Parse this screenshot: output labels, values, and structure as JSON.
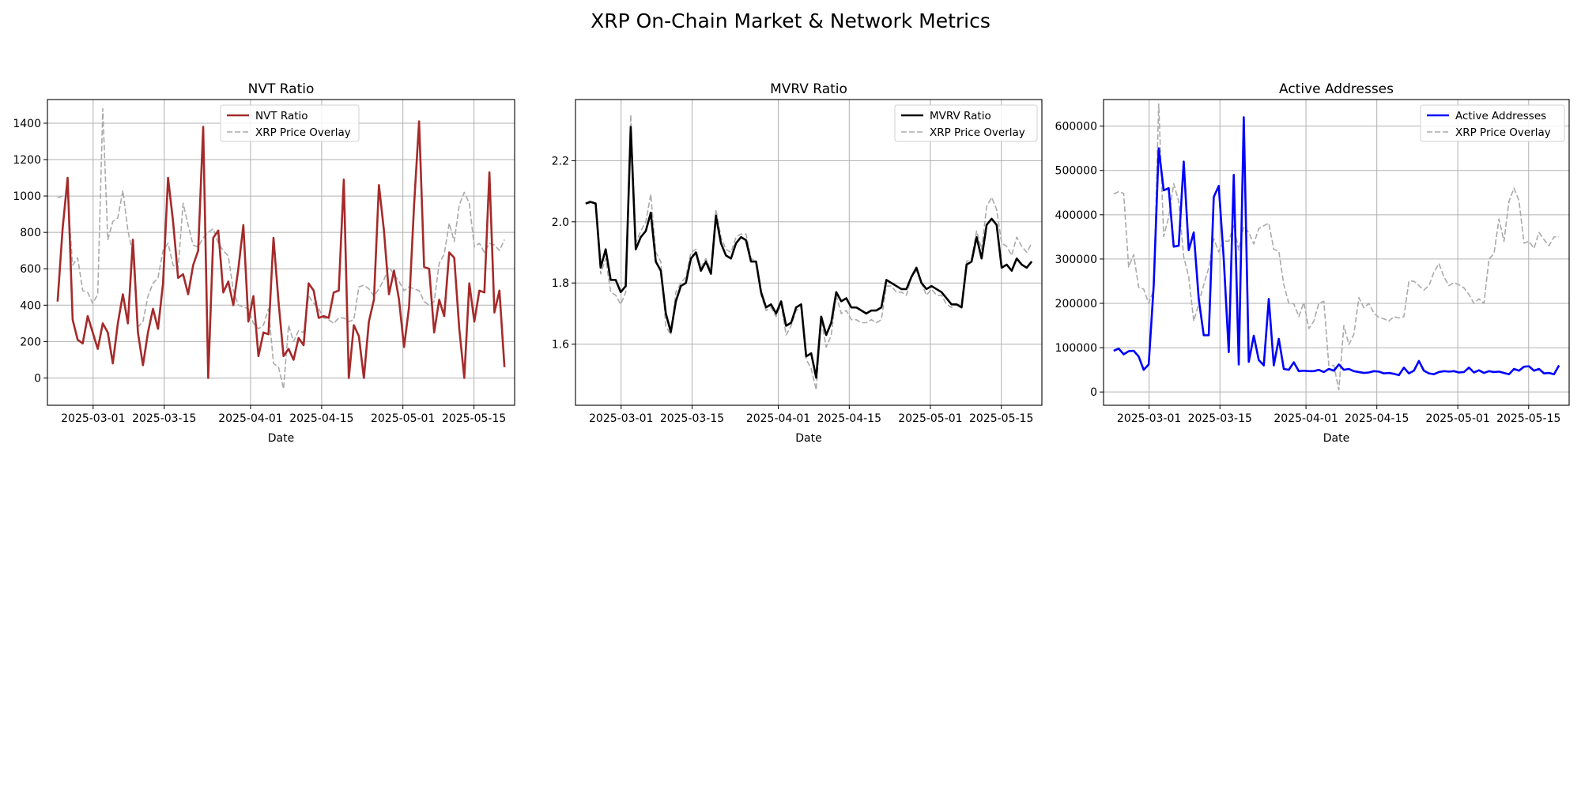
{
  "suptitle": "XRP On-Chain Market & Network Metrics",
  "chart_data": [
    {
      "type": "line",
      "title": "NVT Ratio",
      "xlabel": "Date",
      "ylabel": "",
      "x_start": "2025-02-22",
      "x_end": "2025-05-21",
      "xlim": [
        "2025-02-20",
        "2025-05-23"
      ],
      "xticks": [
        "2025-03-01",
        "2025-03-15",
        "2025-04-01",
        "2025-04-15",
        "2025-05-01",
        "2025-05-15"
      ],
      "ylim": [
        -150,
        1530
      ],
      "yticks": [
        0,
        200,
        400,
        600,
        800,
        1000,
        1200,
        1400
      ],
      "grid": true,
      "legend": "upper center",
      "series": [
        {
          "name": "NVT Ratio",
          "color": "#a52a2a",
          "style": "solid",
          "values": [
            420,
            820,
            1100,
            320,
            210,
            190,
            340,
            250,
            160,
            300,
            250,
            80,
            300,
            460,
            300,
            760,
            250,
            70,
            250,
            380,
            270,
            520,
            1100,
            860,
            550,
            570,
            460,
            620,
            700,
            1380,
            0,
            770,
            810,
            470,
            530,
            400,
            600,
            840,
            310,
            450,
            120,
            250,
            240,
            770,
            420,
            120,
            160,
            100,
            220,
            180,
            520,
            480,
            330,
            340,
            330,
            470,
            480,
            1090,
            0,
            290,
            230,
            0,
            310,
            430,
            1060,
            810,
            460,
            590,
            430,
            170,
            390,
            950,
            1410,
            610,
            600,
            250,
            430,
            340,
            690,
            660,
            270,
            0,
            520,
            310,
            480,
            470,
            1130,
            360,
            480,
            60
          ]
        },
        {
          "name": "XRP Price Overlay",
          "color": "#aaaaaa",
          "style": "dashed",
          "values": [
            990,
            1000,
            1000,
            620,
            660,
            480,
            470,
            410,
            460,
            1480,
            760,
            860,
            880,
            1030,
            810,
            680,
            280,
            310,
            450,
            520,
            550,
            700,
            740,
            620,
            600,
            960,
            840,
            730,
            720,
            770,
            800,
            820,
            740,
            700,
            670,
            480,
            400,
            390,
            380,
            300,
            270,
            290,
            380,
            80,
            60,
            -60,
            290,
            200,
            260,
            250,
            450,
            410,
            380,
            330,
            320,
            300,
            330,
            330,
            310,
            320,
            500,
            510,
            490,
            450,
            490,
            540,
            610,
            570,
            530,
            480,
            500,
            490,
            480,
            420,
            400,
            420,
            630,
            680,
            850,
            750,
            950,
            1020,
            960,
            720,
            740,
            690,
            740,
            730,
            700,
            760
          ]
        }
      ]
    },
    {
      "type": "line",
      "title": "MVRV Ratio",
      "xlabel": "Date",
      "ylabel": "",
      "x_start": "2025-02-22",
      "x_end": "2025-05-21",
      "xlim": [
        "2025-02-20",
        "2025-05-23"
      ],
      "xticks": [
        "2025-03-01",
        "2025-03-15",
        "2025-04-01",
        "2025-04-15",
        "2025-05-01",
        "2025-05-15"
      ],
      "ylim": [
        1.4,
        2.4
      ],
      "yticks": [
        1.6,
        1.8,
        2.0,
        2.2
      ],
      "grid": true,
      "legend": "upper right",
      "series": [
        {
          "name": "MVRV Ratio",
          "color": "#000000",
          "style": "solid",
          "values": [
            2.06,
            2.065,
            2.06,
            1.85,
            1.91,
            1.81,
            1.81,
            1.77,
            1.79,
            2.31,
            1.91,
            1.95,
            1.97,
            2.03,
            1.87,
            1.84,
            1.7,
            1.64,
            1.74,
            1.79,
            1.8,
            1.88,
            1.9,
            1.84,
            1.87,
            1.83,
            2.02,
            1.93,
            1.89,
            1.88,
            1.93,
            1.95,
            1.94,
            1.87,
            1.87,
            1.77,
            1.72,
            1.73,
            1.7,
            1.74,
            1.66,
            1.67,
            1.72,
            1.73,
            1.56,
            1.57,
            1.49,
            1.69,
            1.63,
            1.67,
            1.77,
            1.74,
            1.75,
            1.72,
            1.72,
            1.71,
            1.7,
            1.71,
            1.71,
            1.72,
            1.81,
            1.8,
            1.79,
            1.78,
            1.78,
            1.82,
            1.85,
            1.8,
            1.78,
            1.79,
            1.78,
            1.77,
            1.75,
            1.73,
            1.73,
            1.72,
            1.86,
            1.87,
            1.95,
            1.88,
            1.99,
            2.01,
            1.99,
            1.85,
            1.86,
            1.84,
            1.88,
            1.86,
            1.85,
            1.87
          ]
        },
        {
          "name": "XRP Price Overlay",
          "color": "#aaaaaa",
          "style": "dashed",
          "values": [
            2.06,
            2.07,
            2.06,
            1.83,
            1.88,
            1.77,
            1.76,
            1.73,
            1.77,
            2.35,
            1.93,
            1.97,
            2.0,
            2.09,
            1.9,
            1.87,
            1.66,
            1.63,
            1.77,
            1.8,
            1.82,
            1.9,
            1.91,
            1.85,
            1.88,
            1.84,
            2.04,
            1.95,
            1.91,
            1.9,
            1.95,
            1.96,
            1.96,
            1.88,
            1.87,
            1.76,
            1.71,
            1.72,
            1.69,
            1.73,
            1.63,
            1.66,
            1.71,
            1.72,
            1.55,
            1.52,
            1.45,
            1.68,
            1.59,
            1.63,
            1.76,
            1.7,
            1.71,
            1.68,
            1.68,
            1.67,
            1.67,
            1.68,
            1.67,
            1.68,
            1.79,
            1.79,
            1.77,
            1.77,
            1.76,
            1.82,
            1.84,
            1.8,
            1.76,
            1.78,
            1.76,
            1.76,
            1.73,
            1.72,
            1.73,
            1.73,
            1.87,
            1.88,
            1.97,
            1.91,
            2.05,
            2.08,
            2.04,
            1.93,
            1.92,
            1.89,
            1.95,
            1.92,
            1.9,
            1.93
          ]
        }
      ]
    },
    {
      "type": "line",
      "title": "Active Addresses",
      "xlabel": "Date",
      "ylabel": "",
      "x_start": "2025-02-22",
      "x_end": "2025-05-21",
      "xlim": [
        "2025-02-20",
        "2025-05-23"
      ],
      "xticks": [
        "2025-03-01",
        "2025-03-15",
        "2025-04-01",
        "2025-04-15",
        "2025-05-01",
        "2025-05-15"
      ],
      "ylim": [
        -30000,
        660000
      ],
      "yticks": [
        0,
        100000,
        200000,
        300000,
        400000,
        500000,
        600000
      ],
      "grid": true,
      "legend": "upper right",
      "series": [
        {
          "name": "Active Addresses",
          "color": "#0000ff",
          "style": "solid",
          "values": [
            93000,
            98000,
            85000,
            92000,
            93000,
            80000,
            50000,
            62000,
            240000,
            550000,
            455000,
            460000,
            328000,
            330000,
            520000,
            320000,
            360000,
            210000,
            128000,
            128000,
            440000,
            465000,
            300000,
            90000,
            490000,
            62000,
            620000,
            68000,
            127000,
            72000,
            60000,
            210000,
            60000,
            120000,
            52000,
            50000,
            67000,
            47000,
            48000,
            47000,
            47000,
            50000,
            45000,
            52000,
            48000,
            62000,
            50000,
            52000,
            47000,
            45000,
            43000,
            44000,
            47000,
            46000,
            42000,
            43000,
            41000,
            38000,
            55000,
            42000,
            48000,
            70000,
            48000,
            42000,
            40000,
            45000,
            47000,
            46000,
            47000,
            44000,
            45000,
            55000,
            44000,
            49000,
            43000,
            47000,
            45000,
            46000,
            43000,
            40000,
            52000,
            48000,
            57000,
            58000,
            48000,
            52000,
            42000,
            43000,
            40000,
            60000
          ]
        },
        {
          "name": "XRP Price Overlay",
          "color": "#aaaaaa",
          "style": "dashed",
          "values": [
            447000,
            452000,
            448000,
            282000,
            310000,
            236000,
            232000,
            200000,
            230000,
            650000,
            351000,
            395000,
            470000,
            430000,
            305000,
            260000,
            160000,
            200000,
            242000,
            280000,
            346000,
            316000,
            341000,
            340000,
            375000,
            320000,
            374000,
            360000,
            334000,
            369000,
            375000,
            381000,
            322000,
            318000,
            242000,
            200000,
            199000,
            170000,
            202000,
            143000,
            160000,
            200000,
            205000,
            60000,
            60000,
            5000,
            150000,
            107000,
            130000,
            213000,
            190000,
            200000,
            178000,
            168000,
            165000,
            160000,
            170000,
            167000,
            170000,
            250000,
            250000,
            240000,
            230000,
            240000,
            270000,
            290000,
            260000,
            240000,
            247000,
            242000,
            235000,
            220000,
            200000,
            210000,
            200000,
            300000,
            312000,
            390000,
            340000,
            430000,
            460000,
            432000,
            336000,
            340000,
            324000,
            360000,
            344000,
            330000,
            350000,
            350000
          ]
        }
      ]
    }
  ]
}
